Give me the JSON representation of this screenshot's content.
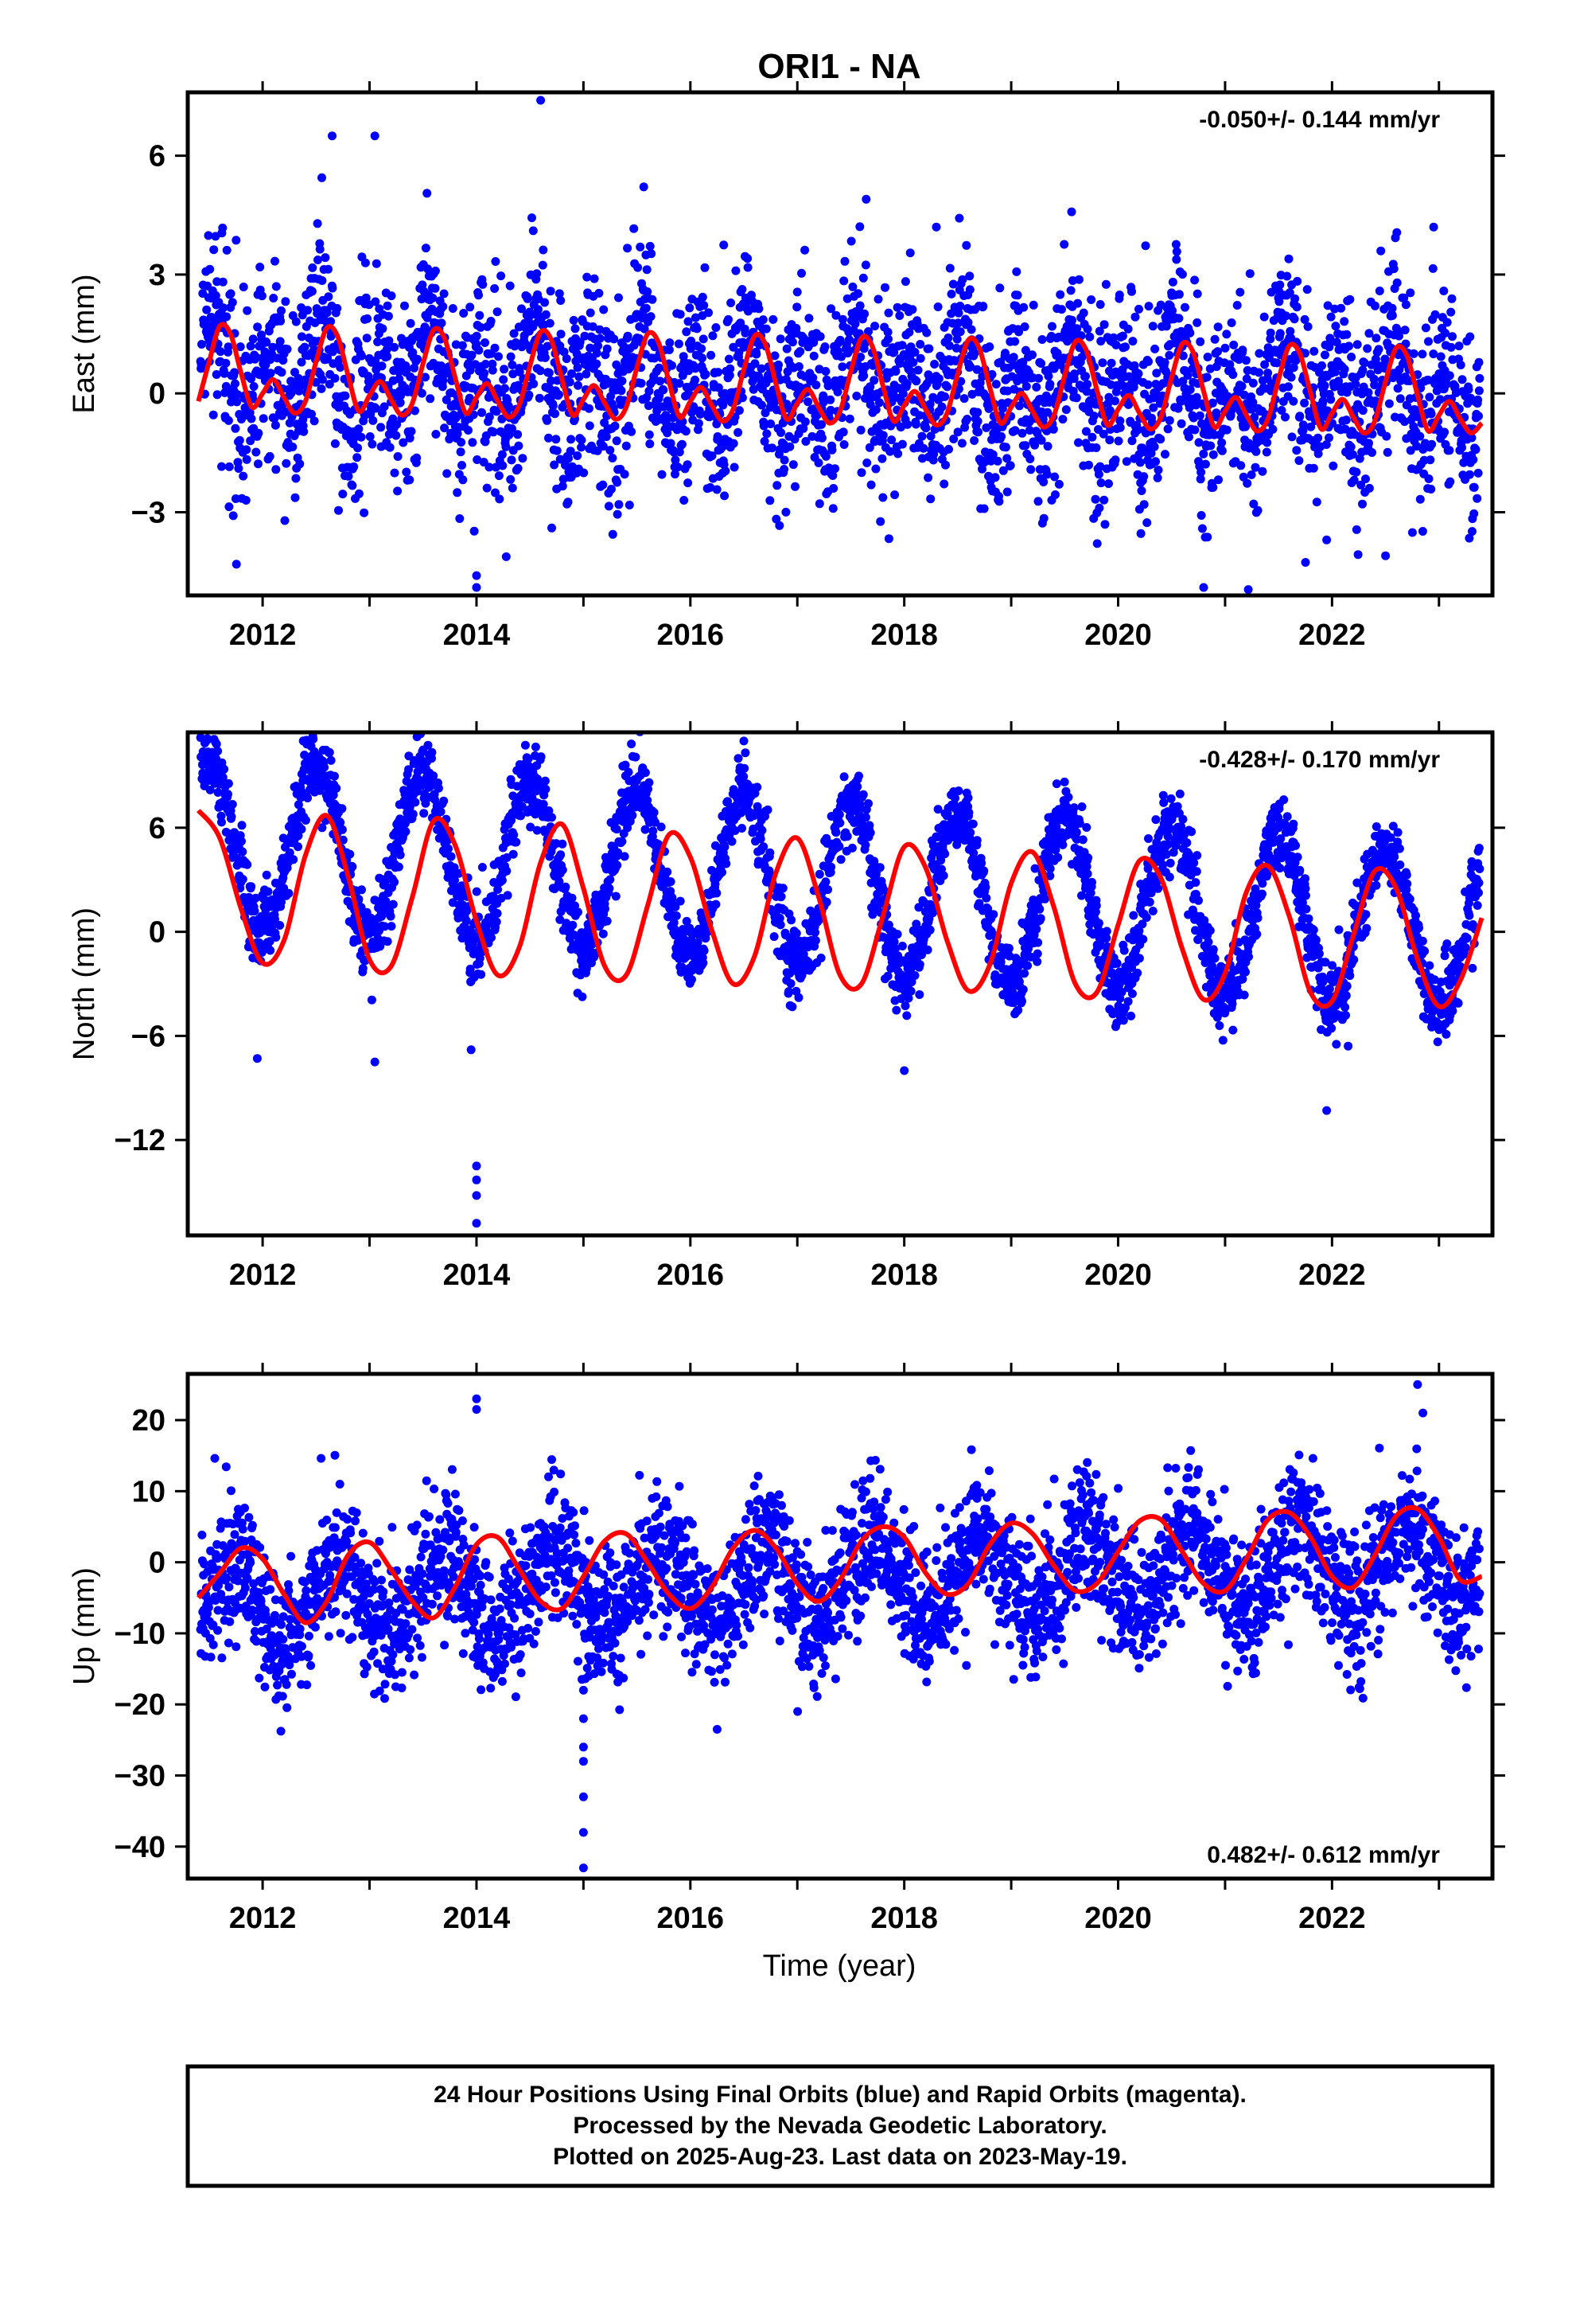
{
  "title": "ORI1 - NA",
  "xlabel": "Time (year)",
  "footer": {
    "line1": "24 Hour Positions Using Final Orbits (blue) and Rapid Orbits (magenta).",
    "line2": "Processed by the Nevada Geodetic Laboratory.",
    "line3": "Plotted on 2025-Aug-23. Last data on 2023-May-19."
  },
  "colors": {
    "points": "#0000ff",
    "fit": "#ff0000",
    "frame": "#000000"
  },
  "chart_data": [
    {
      "type": "scatter",
      "ylabel": "East (mm)",
      "rate_text": "-0.050+/- 0.144 mm/yr",
      "rate_position": "top-right",
      "xlim": [
        2011.3,
        2023.5
      ],
      "ylim": [
        -5.1,
        7.6
      ],
      "xticks": [
        2012,
        2014,
        2016,
        2018,
        2020,
        2022
      ],
      "xtick_labels": [
        "2012",
        "2014",
        "2016",
        "2018",
        "2020",
        "2022"
      ],
      "yticks": [
        6,
        3,
        0,
        -3
      ],
      "ytick_labels": [
        "6",
        "3",
        "0",
        "−3"
      ],
      "grid": false,
      "series": [
        {
          "kind": "points",
          "color": "#0000ff",
          "model": {
            "offset": 0.25,
            "rate": -0.05,
            "annual": 0.5,
            "annual_phase": 0.55,
            "semiannual": 0.9,
            "semiannual_phase": 0.05,
            "scatter": 1.2
          },
          "outliers": [
            [
              2013.05,
              6.5
            ],
            [
              2012.65,
              6.5
            ],
            [
              2014.6,
              7.4
            ],
            [
              2014.0,
              -4.6
            ],
            [
              2014.0,
              -4.9
            ],
            [
              2020.8,
              -4.9
            ],
            [
              2018.3,
              4.2
            ],
            [
              2022.95,
              4.2
            ],
            [
              2022.5,
              -4.1
            ],
            [
              2021.95,
              -3.7
            ]
          ]
        },
        {
          "kind": "fit_line",
          "color": "#ff0000",
          "x": [
            2011.4,
            2011.5,
            2011.6,
            2011.7,
            2011.8,
            2011.9,
            2012.0,
            2012.1,
            2012.2,
            2012.3,
            2012.4,
            2012.5,
            2012.6,
            2012.7,
            2012.8,
            2012.9,
            2013.0,
            2013.1,
            2013.2,
            2013.3,
            2013.4,
            2013.5,
            2013.6,
            2013.7,
            2013.8,
            2013.9,
            2014.0,
            2014.1,
            2014.2,
            2014.3,
            2014.4,
            2014.5,
            2014.6,
            2014.7,
            2014.8,
            2014.9,
            2015.0,
            2015.1,
            2015.2,
            2015.3,
            2015.4,
            2015.5,
            2015.6,
            2015.7,
            2015.8,
            2015.9,
            2016.0,
            2016.1,
            2016.2,
            2016.3,
            2016.4,
            2016.5,
            2016.6,
            2016.7,
            2016.8,
            2016.9,
            2017.0,
            2017.1,
            2017.2,
            2017.3,
            2017.4,
            2017.5,
            2017.6,
            2017.7,
            2017.8,
            2017.9,
            2018.0,
            2018.1,
            2018.2,
            2018.3,
            2018.4,
            2018.5,
            2018.6,
            2018.7,
            2018.8,
            2018.9,
            2019.0,
            2019.1,
            2019.2,
            2019.3,
            2019.4,
            2019.5,
            2019.6,
            2019.7,
            2019.8,
            2019.9,
            2020.0,
            2020.1,
            2020.2,
            2020.3,
            2020.4,
            2020.5,
            2020.6,
            2020.7,
            2020.8,
            2020.9,
            2021.0,
            2021.1,
            2021.2,
            2021.3,
            2021.4,
            2021.5,
            2021.6,
            2021.7,
            2021.8,
            2021.9,
            2022.0,
            2022.1,
            2022.2,
            2022.3,
            2022.4,
            2022.5,
            2022.6,
            2022.7,
            2022.8,
            2022.9,
            2023.0,
            2023.1,
            2023.2,
            2023.3,
            2023.4
          ],
          "y": [
            -0.2,
            0.8,
            1.7,
            1.5,
            0.5,
            -0.35,
            0.0,
            0.35,
            -0.1,
            -0.5,
            -0.2,
            0.8,
            1.65,
            1.45,
            0.45,
            -0.45,
            -0.05,
            0.3,
            -0.15,
            -0.55,
            -0.25,
            0.75,
            1.6,
            1.4,
            0.4,
            -0.5,
            -0.1,
            0.25,
            -0.2,
            -0.6,
            -0.3,
            0.7,
            1.55,
            1.35,
            0.35,
            -0.55,
            -0.15,
            0.2,
            -0.25,
            -0.65,
            -0.35,
            0.65,
            1.5,
            1.3,
            0.3,
            -0.6,
            -0.2,
            0.15,
            -0.3,
            -0.7,
            -0.4,
            0.6,
            1.45,
            1.25,
            0.25,
            -0.65,
            -0.25,
            0.1,
            -0.35,
            -0.75,
            -0.45,
            0.55,
            1.4,
            1.2,
            0.2,
            -0.7,
            -0.3,
            0.05,
            -0.4,
            -0.8,
            -0.5,
            0.5,
            1.35,
            1.15,
            0.15,
            -0.75,
            -0.35,
            0.0,
            -0.45,
            -0.85,
            -0.55,
            0.45,
            1.3,
            1.1,
            0.1,
            -0.8,
            -0.4,
            -0.05,
            -0.5,
            -0.9,
            -0.6,
            0.4,
            1.25,
            1.05,
            0.05,
            -0.85,
            -0.45,
            -0.1,
            -0.55,
            -0.95,
            -0.65,
            0.35,
            1.2,
            1.0,
            0.0,
            -0.9,
            -0.5,
            -0.15,
            -0.6,
            -1.0,
            -0.7,
            0.3,
            1.15,
            0.95,
            -0.05,
            -0.95,
            -0.55,
            -0.2,
            -0.65,
            -1.0,
            -0.75
          ]
        }
      ]
    },
    {
      "type": "scatter",
      "ylabel": "North (mm)",
      "rate_text": "-0.428+/- 0.170 mm/yr",
      "rate_position": "top-right",
      "xlim": [
        2011.3,
        2023.5
      ],
      "ylim": [
        -17.5,
        11.5
      ],
      "xticks": [
        2012,
        2014,
        2016,
        2018,
        2020,
        2022
      ],
      "xtick_labels": [
        "2012",
        "2014",
        "2016",
        "2018",
        "2020",
        "2022"
      ],
      "yticks": [
        6,
        0,
        -6,
        -12
      ],
      "ytick_labels": [
        "6",
        "0",
        "−6",
        "−12"
      ],
      "grid": false,
      "series": [
        {
          "kind": "points",
          "color": "#0000ff",
          "model": {
            "offset": 2.8,
            "rate": -0.43,
            "annual": 4.8,
            "annual_phase": 0.5,
            "semiannual": 0.0,
            "semiannual_phase": 0.0,
            "scatter": 1.1
          },
          "outliers": [
            [
              2014.0,
              -13.5
            ],
            [
              2014.0,
              -14.3
            ],
            [
              2014.0,
              -15.2
            ],
            [
              2014.0,
              -16.8
            ],
            [
              2013.95,
              -6.8
            ],
            [
              2013.05,
              -7.5
            ],
            [
              2011.95,
              -7.3
            ],
            [
              2016.5,
              11.0
            ],
            [
              2021.95,
              -10.3
            ],
            [
              2018.0,
              -8.0
            ]
          ]
        },
        {
          "kind": "fit_line",
          "color": "#ff0000",
          "x": [
            2011.4,
            2011.6,
            2011.8,
            2012.0,
            2012.2,
            2012.4,
            2012.6,
            2012.8,
            2013.0,
            2013.2,
            2013.4,
            2013.6,
            2013.8,
            2014.0,
            2014.2,
            2014.4,
            2014.6,
            2014.8,
            2015.0,
            2015.2,
            2015.4,
            2015.6,
            2015.8,
            2016.0,
            2016.2,
            2016.4,
            2016.6,
            2016.8,
            2017.0,
            2017.2,
            2017.4,
            2017.6,
            2017.8,
            2018.0,
            2018.2,
            2018.4,
            2018.6,
            2018.8,
            2019.0,
            2019.2,
            2019.4,
            2019.6,
            2019.8,
            2020.0,
            2020.2,
            2020.4,
            2020.6,
            2020.8,
            2021.0,
            2021.2,
            2021.4,
            2021.6,
            2021.8,
            2022.0,
            2022.2,
            2022.4,
            2022.6,
            2022.8,
            2023.0,
            2023.2,
            2023.4
          ],
          "y": [
            7.0,
            5.4,
            1.3,
            -1.8,
            -0.5,
            4.4,
            6.7,
            3.2,
            -1.6,
            -2.0,
            2.0,
            6.4,
            5.0,
            0.6,
            -2.5,
            -0.9,
            4.0,
            6.2,
            2.5,
            -2.0,
            -2.5,
            1.5,
            5.6,
            4.3,
            0.1,
            -3.0,
            -1.4,
            3.4,
            5.4,
            2.0,
            -2.5,
            -3.0,
            0.9,
            4.9,
            3.7,
            -0.5,
            -3.4,
            -1.9,
            2.8,
            4.6,
            1.4,
            -3.0,
            -3.5,
            0.4,
            4.1,
            3.1,
            -1.0,
            -3.9,
            -2.4,
            2.3,
            3.8,
            0.9,
            -3.5,
            -4.0,
            -0.2,
            3.5,
            2.5,
            -1.6,
            -4.3,
            -2.8,
            0.8
          ]
        }
      ]
    },
    {
      "type": "scatter",
      "ylabel": "Up (mm)",
      "rate_text": "0.482+/- 0.612 mm/yr",
      "rate_position": "bottom-right",
      "xlim": [
        2011.3,
        2023.5
      ],
      "ylim": [
        -44.5,
        26.5
      ],
      "xticks": [
        2012,
        2014,
        2016,
        2018,
        2020,
        2022
      ],
      "xtick_labels": [
        "2012",
        "2014",
        "2016",
        "2018",
        "2020",
        "2022"
      ],
      "yticks": [
        20,
        10,
        0,
        -10,
        -20,
        -30,
        -40
      ],
      "ytick_labels": [
        "20",
        "10",
        "0",
        "−10",
        "−20",
        "−30",
        "−40"
      ],
      "grid": false,
      "series": [
        {
          "kind": "points",
          "color": "#0000ff",
          "model": {
            "offset": -3.0,
            "rate": 0.48,
            "annual": 5.5,
            "annual_phase": 0.7,
            "semiannual": 0.0,
            "semiannual_phase": 0.0,
            "scatter": 4.8
          },
          "outliers": [
            [
              2015.0,
              -43.0
            ],
            [
              2015.0,
              -38.0
            ],
            [
              2015.0,
              -33.0
            ],
            [
              2015.0,
              -28.0
            ],
            [
              2015.0,
              -26.0
            ],
            [
              2015.0,
              -22.0
            ],
            [
              2015.0,
              -18.0
            ],
            [
              2015.05,
              -16.0
            ],
            [
              2014.0,
              23.0
            ],
            [
              2014.0,
              21.5
            ],
            [
              2016.25,
              -23.5
            ],
            [
              2022.8,
              25.0
            ],
            [
              2022.85,
              21.0
            ]
          ]
        },
        {
          "kind": "fit_line",
          "color": "#ff0000",
          "x": [
            2011.4,
            2011.6,
            2011.8,
            2012.0,
            2012.2,
            2012.4,
            2012.6,
            2012.8,
            2013.0,
            2013.2,
            2013.4,
            2013.6,
            2013.8,
            2014.0,
            2014.2,
            2014.4,
            2014.6,
            2014.8,
            2015.0,
            2015.2,
            2015.4,
            2015.6,
            2015.8,
            2016.0,
            2016.2,
            2016.4,
            2016.6,
            2016.8,
            2017.0,
            2017.2,
            2017.4,
            2017.6,
            2017.8,
            2018.0,
            2018.2,
            2018.4,
            2018.6,
            2018.8,
            2019.0,
            2019.2,
            2019.4,
            2019.6,
            2019.8,
            2020.0,
            2020.2,
            2020.4,
            2020.6,
            2020.8,
            2021.0,
            2021.2,
            2021.4,
            2021.6,
            2021.8,
            2022.0,
            2022.2,
            2022.4,
            2022.6,
            2022.8,
            2023.0,
            2023.2,
            2023.4
          ],
          "y": [
            -5.0,
            -1.5,
            2.0,
            0.5,
            -4.5,
            -8.5,
            -5.5,
            1.0,
            2.8,
            -1.0,
            -5.5,
            -7.8,
            -3.5,
            2.5,
            3.5,
            -1.0,
            -5.5,
            -6.5,
            -2.0,
            3.0,
            4.0,
            0.0,
            -4.5,
            -6.5,
            -3.5,
            2.0,
            4.5,
            2.0,
            -3.0,
            -5.5,
            -2.5,
            3.0,
            5.0,
            3.5,
            -1.5,
            -4.5,
            -3.0,
            2.5,
            5.5,
            4.0,
            -0.5,
            -4.0,
            -3.0,
            1.5,
            5.8,
            6.0,
            1.5,
            -3.0,
            -4.0,
            0.5,
            6.0,
            7.0,
            3.5,
            -2.0,
            -3.5,
            1.0,
            6.5,
            7.5,
            3.5,
            -2.5,
            -2.0
          ]
        }
      ]
    }
  ]
}
